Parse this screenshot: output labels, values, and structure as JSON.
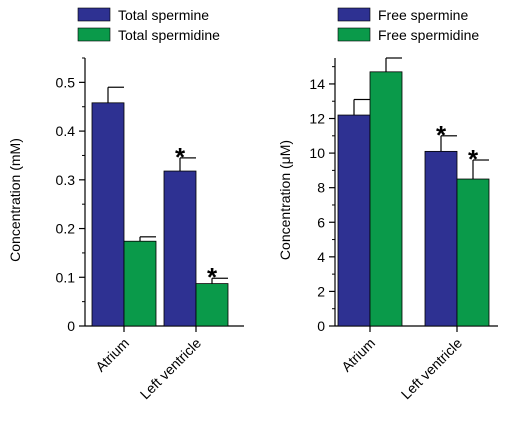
{
  "chart_data": [
    {
      "type": "bar",
      "title": "",
      "xlabel": "",
      "ylabel": "Concentration (mM)",
      "ylim": [
        0,
        0.55
      ],
      "yticks": [
        "0",
        "0.1",
        "0.2",
        "0.3",
        "0.4",
        "0.5"
      ],
      "categories": [
        "Atrium",
        "Left ventricle"
      ],
      "legend_position": "top",
      "series": [
        {
          "name": "Total spermine",
          "color": "#2e3192",
          "values": [
            0.458,
            0.318
          ],
          "errors": [
            0.032,
            0.027
          ]
        },
        {
          "name": "Total spermidine",
          "color": "#0a9a4a",
          "values": [
            0.174,
            0.087
          ],
          "errors": [
            0.009,
            0.011
          ]
        }
      ],
      "annotations": [
        {
          "series": 0,
          "category": 1,
          "text": "*"
        },
        {
          "series": 1,
          "category": 1,
          "text": "*"
        }
      ]
    },
    {
      "type": "bar",
      "title": "",
      "xlabel": "",
      "ylabel": "Concentration (μM)",
      "ylim": [
        0,
        15.5
      ],
      "yticks": [
        "0",
        "2",
        "4",
        "6",
        "8",
        "10",
        "12",
        "14"
      ],
      "categories": [
        "Atrium",
        "Left ventricle"
      ],
      "legend_position": "top",
      "series": [
        {
          "name": "Free spermine",
          "color": "#2e3192",
          "values": [
            12.2,
            10.1
          ],
          "errors": [
            0.9,
            0.9
          ]
        },
        {
          "name": "Free spermidine",
          "color": "#0a9a4a",
          "values": [
            14.7,
            8.5
          ],
          "errors": [
            0.8,
            1.1
          ]
        }
      ],
      "annotations": [
        {
          "series": 0,
          "category": 1,
          "text": "*"
        },
        {
          "series": 1,
          "category": 1,
          "text": "*"
        }
      ]
    }
  ]
}
